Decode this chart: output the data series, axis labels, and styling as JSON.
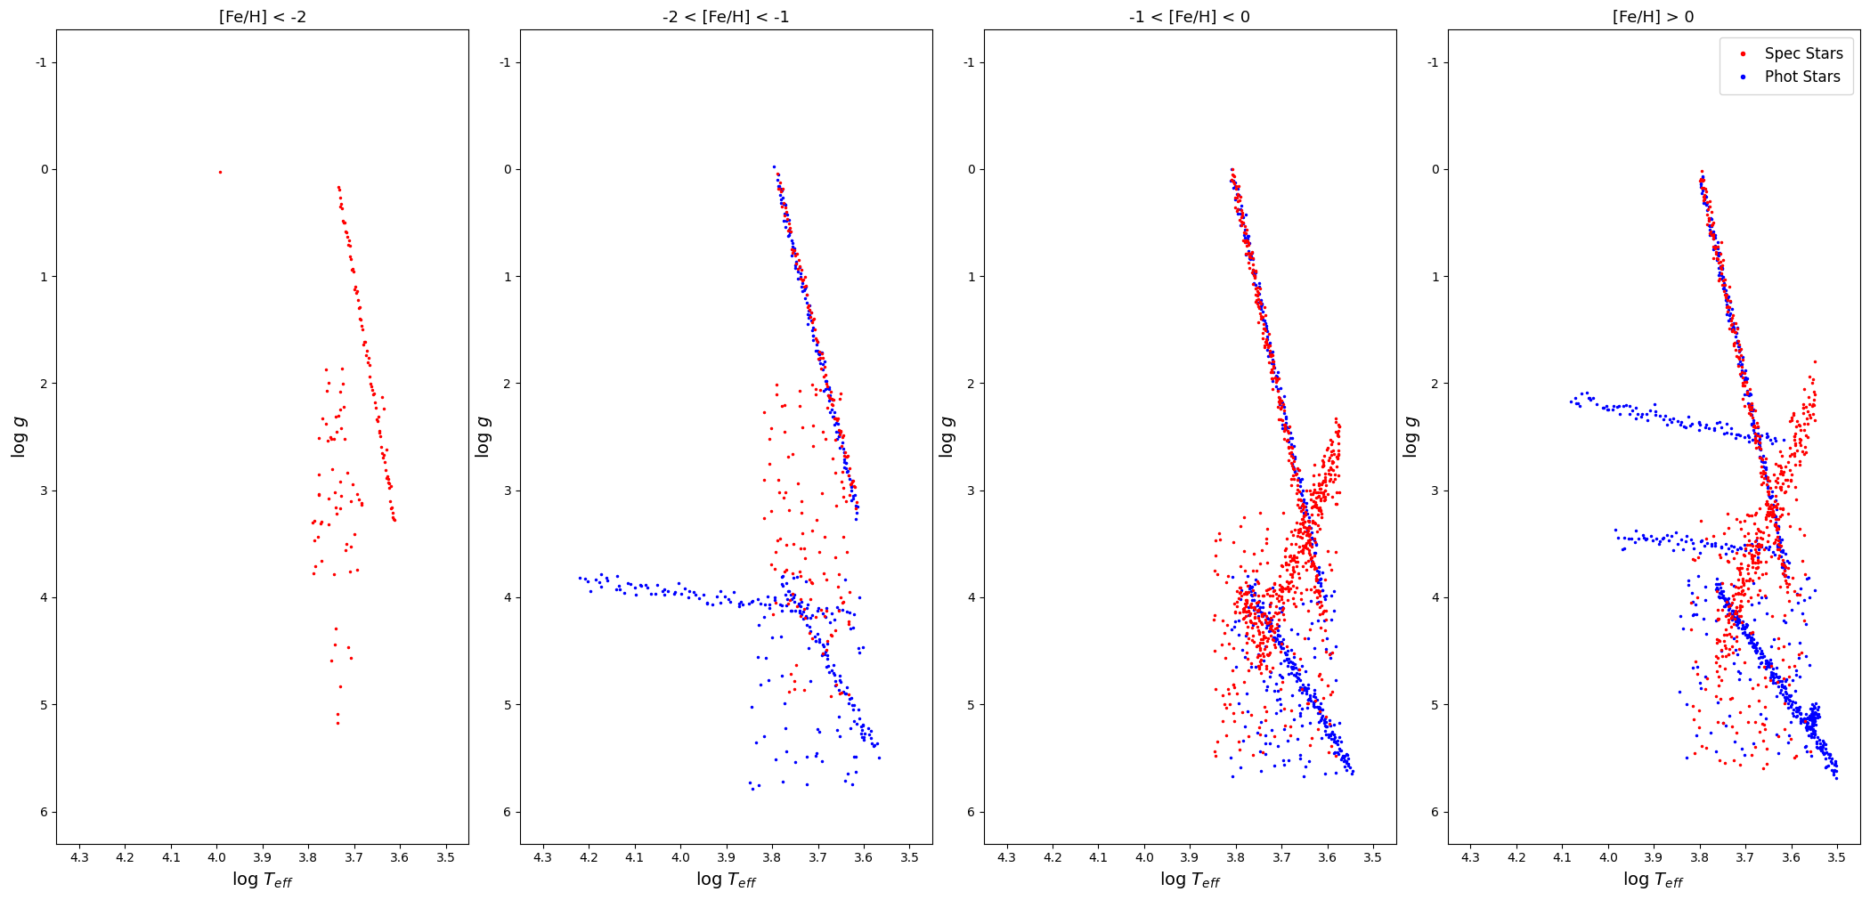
{
  "panels": [
    {
      "title": "[Fe/H] < -2",
      "has_spec": true,
      "has_phot": false
    },
    {
      "title": "-2 < [Fe/H] < -1",
      "has_spec": true,
      "has_phot": true
    },
    {
      "title": "-1 < [Fe/H] < 0",
      "has_spec": true,
      "has_phot": true
    },
    {
      "title": "[Fe/H] > 0",
      "has_spec": true,
      "has_phot": true
    }
  ],
  "xlim": [
    4.35,
    3.45
  ],
  "ylim": [
    6.3,
    -1.3
  ],
  "xticks": [
    4.3,
    4.2,
    4.1,
    4.0,
    3.9,
    3.8,
    3.7,
    3.6,
    3.5
  ],
  "yticks": [
    -1,
    0,
    1,
    2,
    3,
    4,
    5,
    6
  ],
  "xlabel": "log $T_{eff}$",
  "ylabel": "log $g$",
  "spec_color": "#FF0000",
  "phot_color": "#0000FF",
  "marker_size": 3,
  "background_color": "#FFFFFF"
}
